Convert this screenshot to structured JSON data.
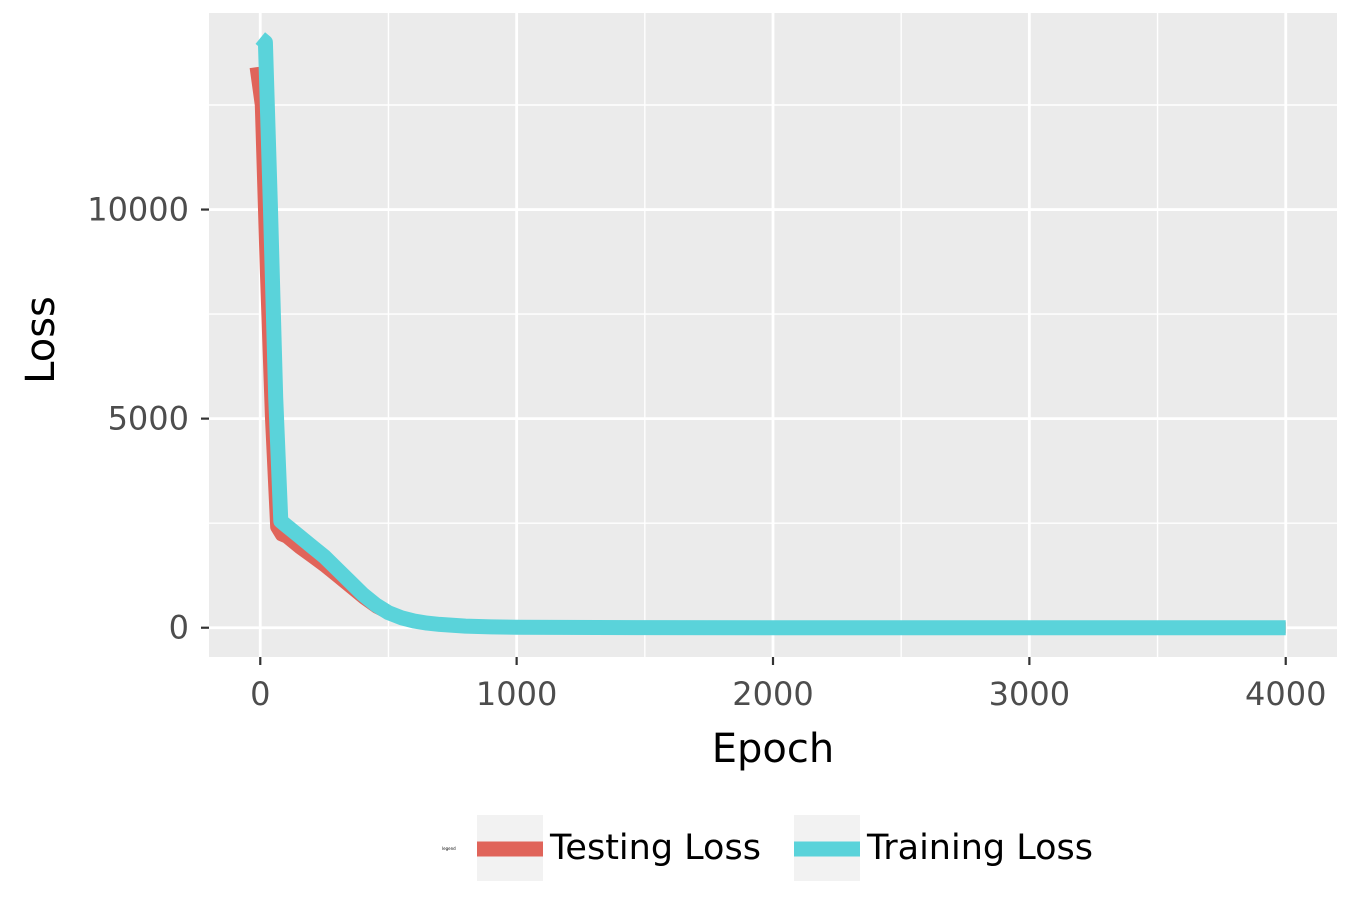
{
  "chart_data": {
    "type": "line",
    "title": "",
    "xlabel": "Epoch",
    "ylabel": "Loss",
    "xlim": [
      -200,
      4200
    ],
    "ylim": [
      -700,
      14700
    ],
    "x_ticks": [
      0,
      1000,
      2000,
      3000,
      4000
    ],
    "x_tick_labels": [
      "0",
      "1000",
      "2000",
      "3000",
      "4000"
    ],
    "y_ticks": [
      0,
      5000,
      10000
    ],
    "y_tick_labels": [
      "0",
      "5000",
      "10000"
    ],
    "x_minor_ticks": [
      500,
      1500,
      2500,
      3500
    ],
    "y_minor_ticks": [
      2500,
      7500,
      12500
    ],
    "grid": true,
    "legend_position": "bottom",
    "legend_title": "legend",
    "colors": {
      "panel_bg": "#EBEBEB",
      "grid": "#FFFFFF",
      "legend_key_bg": "#F2F2F2",
      "axis_text": "#4D4D4D"
    },
    "series": [
      {
        "name": "Testing Loss",
        "color": "#E0645A",
        "x": [
          -20,
          0,
          20,
          40,
          60,
          80,
          100,
          150,
          200,
          250,
          300,
          350,
          400,
          450,
          500,
          550,
          600,
          650,
          700,
          800,
          900,
          1000,
          1500,
          2000,
          2500,
          3000,
          3500,
          4000
        ],
        "values": [
          13400,
          12500,
          8500,
          5000,
          2400,
          2200,
          2150,
          1900,
          1680,
          1450,
          1200,
          950,
          700,
          480,
          320,
          210,
          140,
          100,
          70,
          40,
          20,
          10,
          2,
          1,
          0,
          0,
          0,
          0
        ]
      },
      {
        "name": "Training Loss",
        "color": "#5AD3DA",
        "x": [
          0,
          20,
          40,
          60,
          80,
          100,
          150,
          200,
          250,
          300,
          350,
          400,
          450,
          500,
          550,
          600,
          650,
          700,
          800,
          900,
          1000,
          1500,
          2000,
          2500,
          3000,
          3500,
          4000
        ],
        "values": [
          14100,
          14000,
          10000,
          5500,
          2550,
          2450,
          2200,
          1950,
          1700,
          1400,
          1100,
          800,
          550,
          360,
          240,
          160,
          110,
          80,
          40,
          20,
          10,
          2,
          1,
          0,
          0,
          0,
          0
        ]
      }
    ]
  }
}
